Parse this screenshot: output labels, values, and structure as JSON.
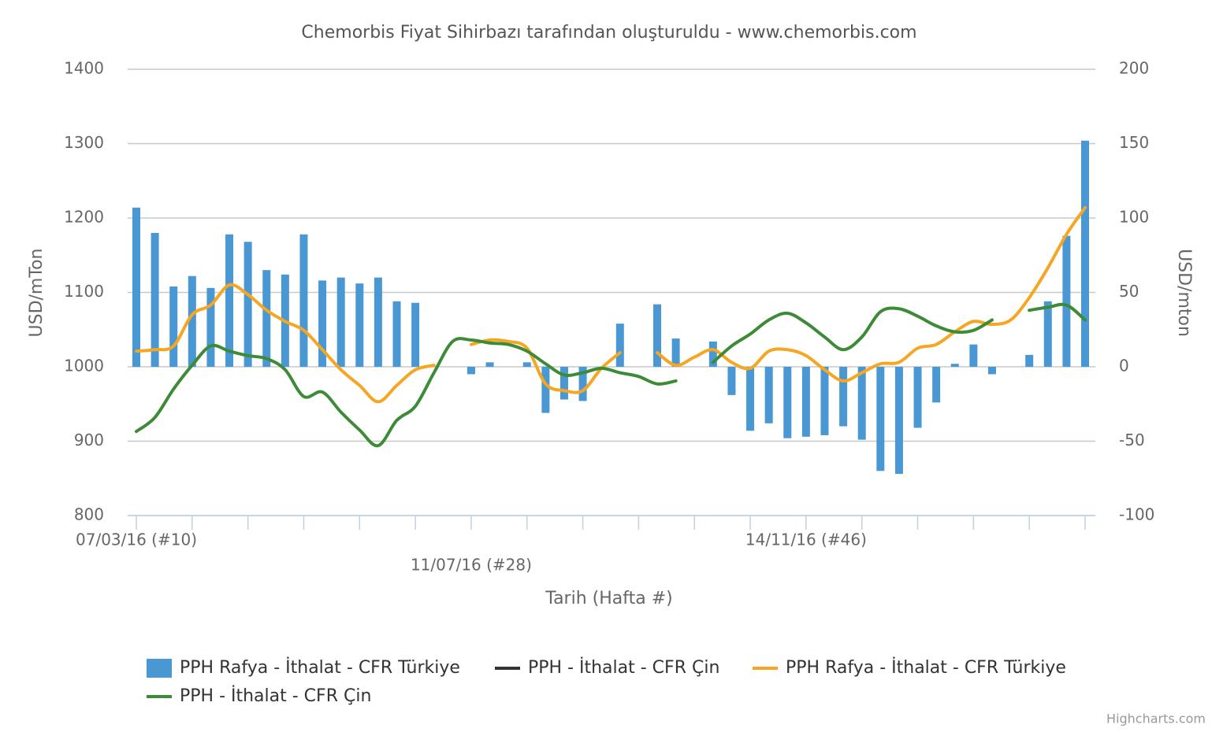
{
  "chart_data": {
    "type": "combo",
    "title": "Chemorbis Fiyat Sihirbazı tarafından oluşturuldu - www.chemorbis.com",
    "x_label": "Tarih (Hafta #)",
    "y_label": "USD/mTon",
    "y2_label": "USD/mton",
    "credit": "Highcharts.com",
    "categories": [
      "07/03/16 (#10)",
      null,
      null,
      null,
      null,
      null,
      null,
      null,
      null,
      null,
      null,
      null,
      null,
      null,
      null,
      null,
      null,
      null,
      "11/07/16 (#28)",
      null,
      null,
      null,
      null,
      null,
      null,
      null,
      null,
      null,
      null,
      null,
      null,
      null,
      null,
      null,
      null,
      null,
      "14/11/16 (#46)",
      null,
      null,
      null,
      null,
      null,
      null,
      null,
      null,
      null,
      null,
      null,
      null,
      null,
      null,
      null
    ],
    "ylim": [
      800,
      1400
    ],
    "yticks": [
      800,
      900,
      1000,
      1100,
      1200,
      1300,
      1400
    ],
    "y2lim": [
      -100,
      200
    ],
    "y2ticks": [
      -100,
      -50,
      0,
      50,
      100,
      150,
      200
    ],
    "grid": true,
    "series": [
      {
        "name": "PPH Rafya - İthalat - CFR Türkiye",
        "type": "bar",
        "axis": "y2",
        "color": "#4a98d3",
        "values": [
          107,
          90,
          54,
          61,
          53,
          89,
          84,
          65,
          62,
          89,
          58,
          60,
          56,
          60,
          44,
          43,
          null,
          null,
          -5,
          3,
          null,
          3,
          -31,
          -22,
          -23,
          null,
          29,
          null,
          42,
          19,
          null,
          17,
          -19,
          -43,
          -38,
          -48,
          -47,
          -46,
          -40,
          -49,
          -70,
          -72,
          -41,
          -24,
          2,
          15,
          -5,
          null,
          8,
          44,
          88,
          152
        ]
      },
      {
        "name": "PPH - İthalat - CFR Çin",
        "type": "line",
        "color": "#333333",
        "values": [
          null,
          null,
          null,
          null,
          null,
          null,
          null,
          null,
          null,
          null,
          null,
          null,
          null,
          null,
          null,
          null,
          null,
          null,
          null,
          null,
          null,
          null,
          null,
          null,
          null,
          null,
          null,
          null,
          null,
          null,
          null,
          null,
          null,
          null,
          null,
          null,
          null,
          null,
          null,
          null,
          null,
          null,
          null,
          null,
          null,
          null,
          null,
          null,
          null,
          null,
          null,
          null
        ]
      },
      {
        "name": "PPH Rafya - İthalat - CFR Türkiye",
        "type": "line",
        "color": "#f5a623",
        "values": [
          1021,
          1023,
          1028,
          1070,
          1083,
          1110,
          1097,
          1076,
          1061,
          1049,
          1023,
          996,
          975,
          953,
          975,
          996,
          1002,
          null,
          1030,
          1036,
          1034,
          1025,
          977,
          968,
          968,
          998,
          1019,
          null,
          1019,
          1002,
          1013,
          1023,
          1006,
          998,
          1021,
          1023,
          1015,
          996,
          981,
          992,
          1004,
          1006,
          1025,
          1030,
          1047,
          1061,
          1057,
          1063,
          1093,
          1133,
          1178,
          1214
        ]
      },
      {
        "name": "PPH - İthalat - CFR Çin",
        "type": "line",
        "color": "#3d8b37",
        "values": [
          913,
          932,
          970,
          1002,
          1028,
          1021,
          1015,
          1011,
          996,
          960,
          966,
          939,
          915,
          894,
          928,
          947,
          992,
          1034,
          1036,
          1032,
          1030,
          1021,
          1004,
          989,
          992,
          998,
          992,
          987,
          977,
          981,
          null,
          1006,
          1028,
          1044,
          1063,
          1072,
          1059,
          1040,
          1023,
          1040,
          1074,
          1078,
          1068,
          1055,
          1047,
          1049,
          1063,
          null,
          1076,
          1080,
          1083,
          1063
        ]
      }
    ]
  }
}
